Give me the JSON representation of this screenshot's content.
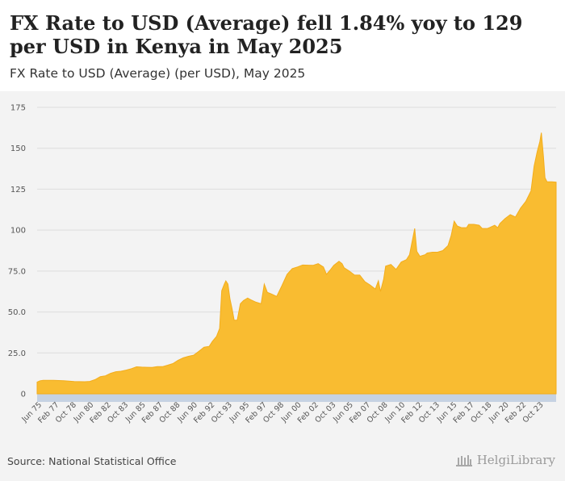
{
  "header": {
    "title": "FX Rate to USD (Average) fell 1.84% yoy to 129 per USD in Kenya in May 2025",
    "subtitle": "FX Rate to USD (Average) (per USD), May 2025"
  },
  "footer": {
    "source": "Source: National Statistical Office",
    "brand": "HelgiLibrary"
  },
  "colors": {
    "area_fill": "#f9bc31",
    "area_stroke": "#f3ad1c",
    "grid": "#dddddd",
    "plot_bg": "#f3f3f3",
    "axis_band": "#c6d2e3"
  },
  "chart_data": {
    "type": "area",
    "title": "FX Rate to USD (Average) fell 1.84% yoy to 129 per USD in Kenya in May 2025",
    "subtitle": "FX Rate to USD (Average) (per USD), May 2025",
    "xlabel": "",
    "ylabel": "",
    "ylim": [
      0,
      175
    ],
    "y_ticks": [
      0,
      25.0,
      50.0,
      75.0,
      100,
      125,
      150,
      175
    ],
    "y_tick_labels": [
      "0",
      "25.0",
      "50.0",
      "75.0",
      "100",
      "125",
      "150",
      "175"
    ],
    "x_range": [
      1975.42,
      2025.42
    ],
    "x_tick_labels": [
      "Jun 75",
      "Feb 77",
      "Oct 78",
      "Jun 80",
      "Feb 82",
      "Oct 83",
      "Jun 85",
      "Feb 87",
      "Oct 88",
      "Jun 90",
      "Feb 92",
      "Oct 93",
      "Jun 95",
      "Feb 97",
      "Oct 98",
      "Jun 00",
      "Feb 02",
      "Oct 03",
      "Jun 05",
      "Feb 07",
      "Oct 08",
      "Jun 10",
      "Feb 12",
      "Oct 13",
      "Jun 15",
      "Feb 17",
      "Oct 18",
      "Jun 20",
      "Feb 22",
      "Oct 23"
    ],
    "grid": true,
    "series": [
      {
        "name": "FX Rate to USD (Average)",
        "points": [
          [
            1975.42,
            7.2
          ],
          [
            1975.7,
            8.0
          ],
          [
            1976.0,
            8.3
          ],
          [
            1977.0,
            8.3
          ],
          [
            1978.0,
            8.0
          ],
          [
            1979.0,
            7.5
          ],
          [
            1980.0,
            7.4
          ],
          [
            1980.5,
            7.6
          ],
          [
            1981.0,
            8.7
          ],
          [
            1981.5,
            10.5
          ],
          [
            1982.0,
            11.0
          ],
          [
            1982.5,
            12.5
          ],
          [
            1983.0,
            13.5
          ],
          [
            1983.5,
            13.8
          ],
          [
            1984.0,
            14.5
          ],
          [
            1984.5,
            15.4
          ],
          [
            1985.0,
            16.5
          ],
          [
            1985.5,
            16.3
          ],
          [
            1986.0,
            16.2
          ],
          [
            1986.5,
            16.1
          ],
          [
            1987.0,
            16.6
          ],
          [
            1987.5,
            16.6
          ],
          [
            1988.0,
            17.5
          ],
          [
            1988.5,
            18.5
          ],
          [
            1989.0,
            20.5
          ],
          [
            1989.5,
            22.0
          ],
          [
            1990.0,
            22.9
          ],
          [
            1990.5,
            23.6
          ],
          [
            1991.0,
            26.0
          ],
          [
            1991.5,
            28.5
          ],
          [
            1992.0,
            29.0
          ],
          [
            1992.3,
            32.0
          ],
          [
            1992.7,
            35.0
          ],
          [
            1993.0,
            40.0
          ],
          [
            1993.2,
            63.0
          ],
          [
            1993.45,
            67.0
          ],
          [
            1993.6,
            69.0
          ],
          [
            1993.8,
            67.0
          ],
          [
            1994.0,
            58.0
          ],
          [
            1994.2,
            52.0
          ],
          [
            1994.4,
            45.0
          ],
          [
            1994.7,
            45.0
          ],
          [
            1995.0,
            55.0
          ],
          [
            1995.3,
            57.0
          ],
          [
            1995.7,
            58.5
          ],
          [
            1996.0,
            57.5
          ],
          [
            1996.5,
            56.0
          ],
          [
            1997.0,
            55.0
          ],
          [
            1997.3,
            67.0
          ],
          [
            1997.6,
            62.0
          ],
          [
            1998.0,
            61.0
          ],
          [
            1998.5,
            59.5
          ],
          [
            1999.0,
            66.0
          ],
          [
            1999.5,
            73.0
          ],
          [
            2000.0,
            76.5
          ],
          [
            2000.5,
            77.5
          ],
          [
            2001.0,
            78.7
          ],
          [
            2002.0,
            78.5
          ],
          [
            2002.5,
            79.5
          ],
          [
            2003.0,
            77.5
          ],
          [
            2003.3,
            73.0
          ],
          [
            2003.7,
            76.0
          ],
          [
            2004.0,
            78.5
          ],
          [
            2004.5,
            81.0
          ],
          [
            2004.8,
            79.5
          ],
          [
            2005.0,
            77.0
          ],
          [
            2005.5,
            75.0
          ],
          [
            2006.0,
            72.5
          ],
          [
            2006.5,
            72.5
          ],
          [
            2007.0,
            68.5
          ],
          [
            2007.5,
            66.5
          ],
          [
            2008.0,
            64.0
          ],
          [
            2008.3,
            69.0
          ],
          [
            2008.5,
            62.5
          ],
          [
            2008.8,
            70.0
          ],
          [
            2009.0,
            78.0
          ],
          [
            2009.5,
            79.0
          ],
          [
            2010.0,
            76.0
          ],
          [
            2010.5,
            80.5
          ],
          [
            2011.0,
            82.0
          ],
          [
            2011.3,
            85.0
          ],
          [
            2011.8,
            101.0
          ],
          [
            2012.0,
            87.0
          ],
          [
            2012.3,
            84.0
          ],
          [
            2012.8,
            85.0
          ],
          [
            2013.0,
            86.0
          ],
          [
            2013.5,
            86.5
          ],
          [
            2014.0,
            86.5
          ],
          [
            2014.5,
            87.5
          ],
          [
            2015.0,
            90.5
          ],
          [
            2015.3,
            96.5
          ],
          [
            2015.6,
            105.5
          ],
          [
            2015.9,
            102.5
          ],
          [
            2016.3,
            101.5
          ],
          [
            2016.8,
            101.5
          ],
          [
            2017.0,
            103.5
          ],
          [
            2017.5,
            103.5
          ],
          [
            2018.0,
            103.0
          ],
          [
            2018.3,
            101.0
          ],
          [
            2018.8,
            101.0
          ],
          [
            2019.0,
            101.5
          ],
          [
            2019.5,
            103.0
          ],
          [
            2019.8,
            101.5
          ],
          [
            2020.0,
            104.0
          ],
          [
            2020.5,
            107.0
          ],
          [
            2021.0,
            109.5
          ],
          [
            2021.5,
            108.0
          ],
          [
            2022.0,
            113.5
          ],
          [
            2022.5,
            117.5
          ],
          [
            2023.0,
            124.0
          ],
          [
            2023.3,
            139.0
          ],
          [
            2023.6,
            148.0
          ],
          [
            2023.85,
            154.0
          ],
          [
            2024.0,
            159.5
          ],
          [
            2024.2,
            145.0
          ],
          [
            2024.35,
            132.0
          ],
          [
            2024.55,
            129.5
          ],
          [
            2025.0,
            129.5
          ],
          [
            2025.42,
            129.3
          ]
        ]
      }
    ]
  }
}
